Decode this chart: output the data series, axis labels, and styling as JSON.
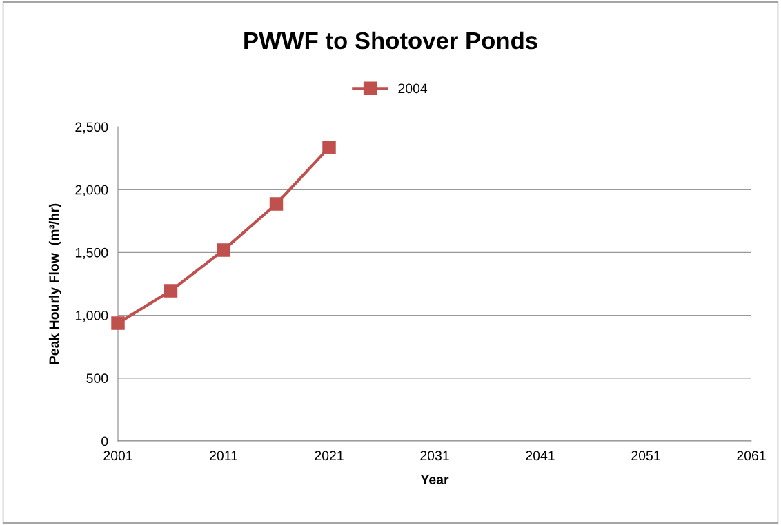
{
  "chart_data": {
    "type": "line",
    "title": "PWWF to Shotover Ponds",
    "xlabel": "Year",
    "ylabel": "Peak Hourly Flow  (m³/hr)",
    "x": [
      2001,
      2006,
      2011,
      2016,
      2021
    ],
    "series": [
      {
        "name": "2004",
        "color": "#c0504d",
        "values": [
          937,
          1195,
          1519,
          1886,
          2336
        ]
      }
    ],
    "xlim": [
      2001,
      2061
    ],
    "xticks": [
      2001,
      2011,
      2021,
      2031,
      2041,
      2051,
      2061
    ],
    "ylim": [
      0,
      2500
    ],
    "yticks": [
      0,
      500,
      {
        "value": 1000,
        "label": "1,000"
      },
      {
        "value": 1500,
        "label": "1,500"
      },
      {
        "value": 2000,
        "label": "2,000"
      },
      {
        "value": 2500,
        "label": "2,500"
      }
    ],
    "grid": "y",
    "legend": "top",
    "marker": "square",
    "line_style": "solid"
  }
}
